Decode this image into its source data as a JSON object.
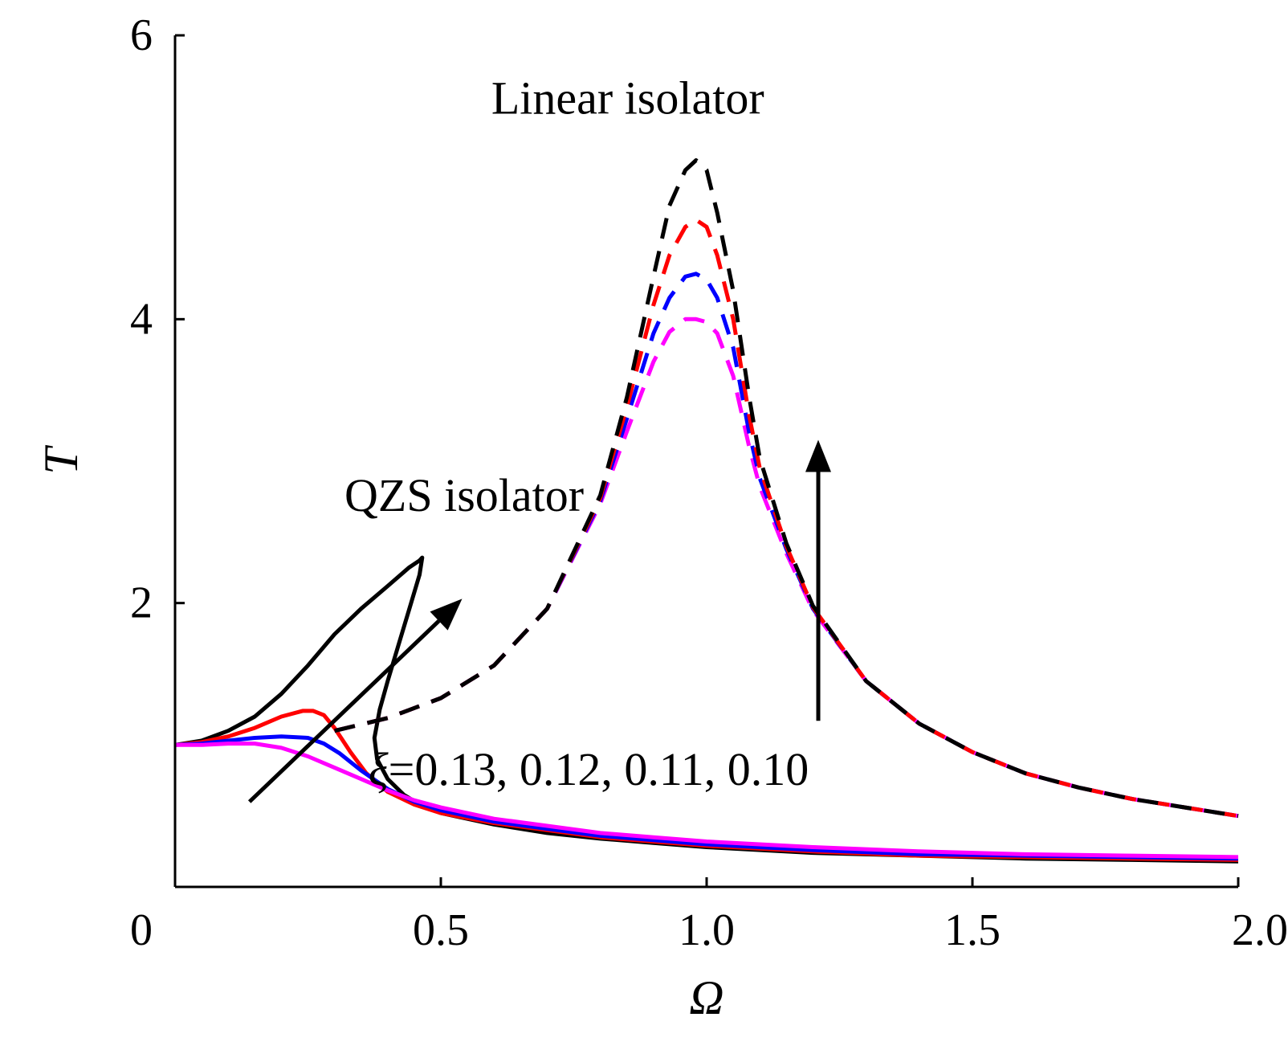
{
  "chart_data": {
    "type": "line",
    "title": "",
    "xlabel": "Ω",
    "ylabel": "T",
    "xlim": [
      0,
      2.0
    ],
    "ylim": [
      0,
      6
    ],
    "grid": false,
    "x_ticks": [
      {
        "value": 0,
        "label": "0"
      },
      {
        "value": 0.5,
        "label": "0.5"
      },
      {
        "value": 1.0,
        "label": "1.0"
      },
      {
        "value": 1.5,
        "label": "1.5"
      },
      {
        "value": 2.0,
        "label": "2.0"
      }
    ],
    "y_ticks": [
      {
        "value": 2,
        "label": "2"
      },
      {
        "value": 4,
        "label": "4"
      },
      {
        "value": 6,
        "label": "6"
      }
    ],
    "damping_values": [
      0.13,
      0.12,
      0.11,
      0.1
    ],
    "series": [
      {
        "name": "QZS isolator ξ=0.13",
        "group": "qzs",
        "color": "#000000",
        "style": "solid",
        "x": [
          0.0,
          0.05,
          0.1,
          0.15,
          0.2,
          0.25,
          0.3,
          0.35,
          0.4,
          0.44,
          0.46,
          0.465,
          0.46,
          0.44,
          0.42,
          0.4,
          0.385,
          0.375,
          0.38,
          0.4,
          0.43,
          0.46,
          0.5,
          0.6,
          0.7,
          0.8,
          0.9,
          1.0,
          1.2,
          1.4,
          1.6,
          1.8,
          2.0
        ],
        "y": [
          1.0,
          1.03,
          1.1,
          1.2,
          1.36,
          1.56,
          1.78,
          1.96,
          2.12,
          2.25,
          2.3,
          2.32,
          2.2,
          1.95,
          1.7,
          1.45,
          1.25,
          1.05,
          0.9,
          0.76,
          0.65,
          0.58,
          0.52,
          0.44,
          0.38,
          0.34,
          0.31,
          0.28,
          0.24,
          0.22,
          0.2,
          0.19,
          0.18
        ]
      },
      {
        "name": "QZS isolator ξ=0.12",
        "group": "qzs",
        "color": "#ff0000",
        "style": "solid",
        "x": [
          0.0,
          0.05,
          0.1,
          0.15,
          0.2,
          0.24,
          0.26,
          0.28,
          0.3,
          0.33,
          0.36,
          0.4,
          0.45,
          0.5,
          0.6,
          0.7,
          0.8,
          0.9,
          1.0,
          1.2,
          1.4,
          1.6,
          1.8,
          2.0
        ],
        "y": [
          1.0,
          1.02,
          1.06,
          1.12,
          1.2,
          1.24,
          1.24,
          1.21,
          1.12,
          0.95,
          0.8,
          0.67,
          0.58,
          0.52,
          0.45,
          0.4,
          0.35,
          0.32,
          0.29,
          0.25,
          0.22,
          0.21,
          0.2,
          0.19
        ]
      },
      {
        "name": "QZS isolator ξ=0.11",
        "group": "qzs",
        "color": "#0000ff",
        "style": "solid",
        "x": [
          0.0,
          0.05,
          0.1,
          0.15,
          0.2,
          0.25,
          0.28,
          0.31,
          0.35,
          0.4,
          0.45,
          0.5,
          0.6,
          0.7,
          0.8,
          0.9,
          1.0,
          1.2,
          1.4,
          1.6,
          1.8,
          2.0
        ],
        "y": [
          1.0,
          1.01,
          1.03,
          1.05,
          1.06,
          1.05,
          1.01,
          0.94,
          0.82,
          0.69,
          0.6,
          0.54,
          0.46,
          0.41,
          0.36,
          0.33,
          0.3,
          0.26,
          0.23,
          0.22,
          0.21,
          0.2
        ]
      },
      {
        "name": "QZS isolator ξ=0.10",
        "group": "qzs",
        "color": "#ff00ff",
        "style": "solid",
        "x": [
          0.0,
          0.05,
          0.1,
          0.15,
          0.2,
          0.25,
          0.3,
          0.35,
          0.4,
          0.45,
          0.5,
          0.6,
          0.7,
          0.8,
          0.9,
          1.0,
          1.2,
          1.4,
          1.6,
          1.8,
          2.0
        ],
        "y": [
          1.0,
          1.0,
          1.01,
          1.01,
          0.98,
          0.92,
          0.84,
          0.76,
          0.68,
          0.61,
          0.56,
          0.48,
          0.43,
          0.38,
          0.35,
          0.32,
          0.28,
          0.25,
          0.23,
          0.22,
          0.21
        ]
      },
      {
        "name": "Linear isolator ξ=0.10",
        "group": "linear",
        "color": "#ff00ff",
        "style": "dashed",
        "x": [
          0.3,
          0.4,
          0.5,
          0.6,
          0.7,
          0.8,
          0.85,
          0.9,
          0.93,
          0.96,
          0.98,
          1.0,
          1.02,
          1.05,
          1.08,
          1.1,
          1.15,
          1.2,
          1.3,
          1.4,
          1.5,
          1.6,
          1.7,
          1.8,
          1.9,
          2.0
        ],
        "y": [
          1.1,
          1.19,
          1.33,
          1.56,
          1.96,
          2.7,
          3.21,
          3.7,
          3.91,
          4.0,
          4.0,
          3.98,
          3.9,
          3.6,
          3.1,
          2.82,
          2.35,
          1.95,
          1.45,
          1.15,
          0.95,
          0.8,
          0.7,
          0.62,
          0.56,
          0.5
        ]
      },
      {
        "name": "Linear isolator ξ=0.11",
        "group": "linear",
        "color": "#0000ff",
        "style": "dashed",
        "x": [
          0.3,
          0.4,
          0.5,
          0.6,
          0.7,
          0.8,
          0.85,
          0.9,
          0.93,
          0.96,
          0.98,
          1.0,
          1.02,
          1.05,
          1.08,
          1.1,
          1.15,
          1.2,
          1.3,
          1.4,
          1.5,
          1.6,
          1.7,
          1.8,
          1.9,
          2.0
        ],
        "y": [
          1.1,
          1.19,
          1.33,
          1.56,
          1.96,
          2.72,
          3.3,
          3.9,
          4.15,
          4.3,
          4.32,
          4.28,
          4.15,
          3.8,
          3.2,
          2.88,
          2.38,
          1.96,
          1.45,
          1.15,
          0.95,
          0.8,
          0.7,
          0.62,
          0.56,
          0.5
        ]
      },
      {
        "name": "Linear isolator ξ=0.12",
        "group": "linear",
        "color": "#ff0000",
        "style": "dashed",
        "x": [
          0.3,
          0.4,
          0.5,
          0.6,
          0.7,
          0.8,
          0.85,
          0.9,
          0.93,
          0.96,
          0.98,
          1.0,
          1.02,
          1.05,
          1.08,
          1.1,
          1.15,
          1.2,
          1.3,
          1.4,
          1.5,
          1.6,
          1.7,
          1.8,
          1.9,
          2.0
        ],
        "y": [
          1.1,
          1.19,
          1.33,
          1.56,
          1.96,
          2.74,
          3.38,
          4.1,
          4.45,
          4.65,
          4.7,
          4.65,
          4.45,
          4.0,
          3.32,
          2.95,
          2.4,
          1.97,
          1.45,
          1.15,
          0.95,
          0.8,
          0.7,
          0.62,
          0.56,
          0.5
        ]
      },
      {
        "name": "Linear isolator ξ=0.13",
        "group": "linear",
        "color": "#000000",
        "style": "dashed",
        "x": [
          0.3,
          0.4,
          0.5,
          0.6,
          0.7,
          0.8,
          0.85,
          0.9,
          0.93,
          0.96,
          0.98,
          1.0,
          1.02,
          1.05,
          1.08,
          1.1,
          1.15,
          1.2,
          1.3,
          1.4,
          1.5,
          1.6,
          1.7,
          1.8,
          1.9,
          2.0
        ],
        "y": [
          1.1,
          1.19,
          1.33,
          1.56,
          1.96,
          2.76,
          3.45,
          4.3,
          4.8,
          5.05,
          5.12,
          5.05,
          4.75,
          4.2,
          3.45,
          3.02,
          2.42,
          1.98,
          1.45,
          1.15,
          0.95,
          0.8,
          0.7,
          0.62,
          0.56,
          0.5
        ]
      }
    ],
    "annotations": [
      {
        "id": "linear",
        "text": "Linear isolator",
        "x": 0.98,
        "y": 5.55
      },
      {
        "id": "qzs",
        "text": "QZS isolator",
        "x": 0.34,
        "y": 2.75
      },
      {
        "id": "xi-prefix",
        "text": "ξ",
        "x": 0.4,
        "y": 0.82
      },
      {
        "id": "xi-values",
        "text": "=0.13, 0.12, 0.11, 0.10",
        "x": 0.44,
        "y": 0.82
      }
    ],
    "arrows": [
      {
        "name": "qzs-trend-arrow",
        "from": [
          0.14,
          0.6
        ],
        "to": [
          0.54,
          2.03
        ]
      },
      {
        "name": "linear-trend-arrow",
        "from": [
          1.21,
          1.17
        ],
        "to": [
          1.21,
          3.15
        ]
      }
    ]
  }
}
